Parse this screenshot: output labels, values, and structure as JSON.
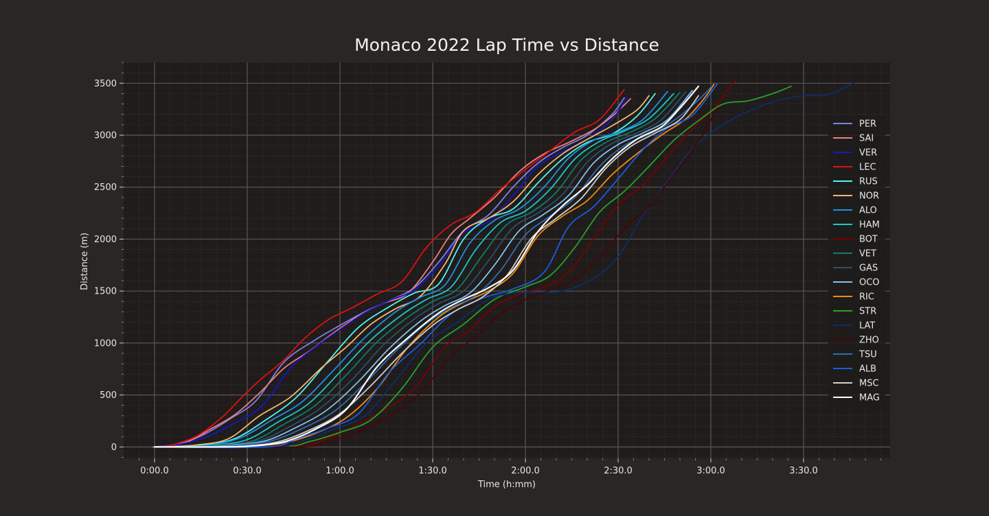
{
  "chart_data": {
    "type": "line",
    "title": "Monaco 2022 Lap Time vs Distance",
    "xlabel": "Time (h:mm)",
    "ylabel": "Distance (m)",
    "x_unit": "seconds",
    "xlim": [
      -10,
      238
    ],
    "ylim": [
      -110,
      3700
    ],
    "x_ticks": [
      0,
      30,
      60,
      90,
      120,
      150,
      180,
      210
    ],
    "x_tick_labels": [
      "0:00.0",
      "0:30.0",
      "1:00.0",
      "1:30.0",
      "2:00.0",
      "2:30.0",
      "3:00.0",
      "3:30.0"
    ],
    "y_ticks": [
      0,
      500,
      1000,
      1500,
      2000,
      2500,
      3000,
      3500
    ],
    "y_tick_labels": [
      "0",
      "500",
      "1000",
      "1500",
      "2000",
      "2500",
      "3000",
      "3500"
    ],
    "grid": true,
    "legend_position": "right",
    "background": "#1f1c1b",
    "series": [
      {
        "name": "PER",
        "color": "#7f7fe8",
        "x": [
          0,
          8,
          16,
          25,
          33,
          42,
          52,
          60,
          68,
          76,
          84,
          92,
          100,
          108,
          116,
          124,
          132,
          140,
          148,
          152
        ],
        "y": [
          0,
          30,
          120,
          280,
          450,
          820,
          1030,
          1170,
          1300,
          1410,
          1530,
          1780,
          2080,
          2230,
          2500,
          2730,
          2880,
          3000,
          3200,
          3360
        ]
      },
      {
        "name": "SAI",
        "color": "#f08080",
        "x": [
          2,
          10,
          18,
          26,
          34,
          42,
          50,
          58,
          66,
          74,
          82,
          90,
          96,
          102,
          110,
          118,
          126,
          134,
          142,
          148,
          154
        ],
        "y": [
          0,
          40,
          170,
          310,
          520,
          760,
          920,
          1100,
          1260,
          1380,
          1480,
          1780,
          2050,
          2200,
          2400,
          2650,
          2820,
          2930,
          3050,
          3180,
          3350
        ]
      },
      {
        "name": "VER",
        "color": "#1a14c9",
        "x": [
          1,
          9,
          17,
          26,
          35,
          44,
          52,
          60,
          68,
          76,
          84,
          92,
          100,
          108,
          116,
          124,
          132,
          140,
          148,
          153
        ],
        "y": [
          0,
          30,
          100,
          230,
          400,
          760,
          960,
          1130,
          1290,
          1410,
          1510,
          1740,
          2060,
          2170,
          2420,
          2700,
          2840,
          2960,
          3150,
          3370
        ]
      },
      {
        "name": "LEC",
        "color": "#e01010",
        "x": [
          3,
          8,
          14,
          22,
          28,
          34,
          42,
          48,
          56,
          64,
          72,
          80,
          88,
          96,
          104,
          112,
          120,
          128,
          136,
          144,
          152
        ],
        "y": [
          0,
          40,
          110,
          290,
          470,
          640,
          840,
          1030,
          1220,
          1340,
          1470,
          1590,
          1920,
          2140,
          2260,
          2480,
          2670,
          2850,
          3030,
          3150,
          3440
        ]
      },
      {
        "name": "RUS",
        "color": "#4ff6f0",
        "x": [
          6,
          16,
          26,
          36,
          46,
          56,
          66,
          76,
          84,
          92,
          100,
          108,
          116,
          124,
          132,
          140,
          148,
          156,
          162
        ],
        "y": [
          0,
          20,
          80,
          260,
          480,
          820,
          1150,
          1350,
          1480,
          1570,
          2000,
          2200,
          2290,
          2540,
          2770,
          2930,
          3010,
          3180,
          3400
        ]
      },
      {
        "name": "NOR",
        "color": "#f5b870",
        "x": [
          4,
          14,
          24,
          34,
          44,
          54,
          62,
          70,
          78,
          86,
          94,
          100,
          108,
          116,
          124,
          132,
          140,
          148,
          156,
          160
        ],
        "y": [
          0,
          20,
          80,
          300,
          480,
          760,
          960,
          1180,
          1330,
          1450,
          1760,
          2080,
          2200,
          2360,
          2620,
          2820,
          2960,
          3090,
          3240,
          3380
        ]
      },
      {
        "name": "ALO",
        "color": "#2190e6",
        "x": [
          8,
          18,
          28,
          38,
          48,
          58,
          68,
          78,
          86,
          94,
          102,
          110,
          118,
          126,
          134,
          142,
          150,
          158,
          166
        ],
        "y": [
          0,
          20,
          90,
          260,
          440,
          740,
          1050,
          1300,
          1440,
          1560,
          1960,
          2180,
          2290,
          2500,
          2780,
          2950,
          3030,
          3150,
          3420
        ]
      },
      {
        "name": "HAM",
        "color": "#19c9c9",
        "x": [
          10,
          20,
          30,
          40,
          50,
          60,
          70,
          80,
          88,
          96,
          104,
          112,
          120,
          128,
          136,
          144,
          152,
          160,
          168
        ],
        "y": [
          0,
          20,
          70,
          240,
          420,
          720,
          1030,
          1270,
          1420,
          1540,
          1900,
          2160,
          2270,
          2480,
          2770,
          2940,
          3040,
          3160,
          3400
        ]
      },
      {
        "name": "BOT",
        "color": "#7a0000",
        "x": [
          44,
          54,
          64,
          74,
          84,
          94,
          102,
          110,
          118,
          126,
          134,
          142,
          150,
          158,
          166,
          174,
          182,
          188
        ],
        "y": [
          0,
          60,
          190,
          350,
          560,
          960,
          1120,
          1350,
          1470,
          1540,
          1680,
          2000,
          2330,
          2520,
          2800,
          3060,
          3290,
          3540
        ]
      },
      {
        "name": "VET",
        "color": "#127a6e",
        "x": [
          12,
          22,
          32,
          42,
          52,
          62,
          72,
          82,
          90,
          98,
          106,
          114,
          122,
          130,
          138,
          146,
          154,
          162,
          170
        ],
        "y": [
          0,
          20,
          60,
          220,
          400,
          690,
          1010,
          1250,
          1400,
          1520,
          1840,
          2140,
          2260,
          2450,
          2760,
          2930,
          3030,
          3160,
          3410
        ]
      },
      {
        "name": "GAS",
        "color": "#2d4f6a",
        "x": [
          14,
          24,
          34,
          44,
          54,
          64,
          74,
          84,
          92,
          100,
          108,
          116,
          124,
          132,
          140,
          148,
          156,
          164,
          172
        ],
        "y": [
          0,
          20,
          60,
          200,
          380,
          650,
          980,
          1230,
          1380,
          1500,
          1790,
          2110,
          2250,
          2430,
          2740,
          2920,
          3020,
          3150,
          3420
        ]
      },
      {
        "name": "OCO",
        "color": "#7fc2f5",
        "x": [
          16,
          26,
          36,
          46,
          56,
          66,
          76,
          86,
          94,
          102,
          110,
          118,
          126,
          134,
          142,
          150,
          158,
          166,
          174
        ],
        "y": [
          0,
          20,
          60,
          190,
          360,
          630,
          950,
          1210,
          1360,
          1480,
          1750,
          2080,
          2240,
          2420,
          2730,
          2910,
          3020,
          3150,
          3430
        ]
      },
      {
        "name": "RIC",
        "color": "#ef8b16",
        "x": [
          22,
          32,
          42,
          52,
          62,
          72,
          82,
          92,
          100,
          108,
          116,
          124,
          132,
          140,
          148,
          156,
          164,
          172,
          178,
          181
        ],
        "y": [
          0,
          10,
          40,
          130,
          280,
          560,
          960,
          1250,
          1390,
          1500,
          1670,
          2030,
          2220,
          2370,
          2620,
          2820,
          3000,
          3160,
          3360,
          3490
        ]
      },
      {
        "name": "STR",
        "color": "#2aa02a",
        "x": [
          40,
          50,
          60,
          70,
          80,
          90,
          100,
          110,
          120,
          128,
          136,
          144,
          152,
          160,
          168,
          176,
          184,
          192,
          200,
          206
        ],
        "y": [
          0,
          50,
          140,
          260,
          560,
          960,
          1180,
          1420,
          1540,
          1650,
          1920,
          2260,
          2460,
          2700,
          2950,
          3140,
          3300,
          3330,
          3400,
          3470
        ]
      },
      {
        "name": "LAT",
        "color": "#0d2d6e",
        "x": [
          38,
          48,
          58,
          68,
          78,
          88,
          98,
          108,
          116,
          122,
          132,
          142,
          150,
          158,
          166,
          174,
          182,
          190,
          200,
          210,
          218,
          226
        ],
        "y": [
          0,
          60,
          170,
          300,
          640,
          1000,
          1200,
          1420,
          1480,
          1490,
          1500,
          1620,
          1830,
          2230,
          2560,
          2870,
          3060,
          3200,
          3320,
          3380,
          3390,
          3500
        ]
      },
      {
        "name": "ZHO",
        "color": "#4a0505",
        "x": [
          46,
          56,
          66,
          76,
          86,
          96,
          104,
          112,
          120,
          128,
          136,
          144,
          152,
          160,
          168,
          176,
          182
        ],
        "y": [
          0,
          50,
          150,
          300,
          520,
          880,
          1060,
          1280,
          1420,
          1510,
          1620,
          1820,
          2100,
          2320,
          2620,
          2940,
          3260
        ]
      },
      {
        "name": "TSU",
        "color": "#2f6db3",
        "x": [
          18,
          28,
          38,
          48,
          58,
          68,
          78,
          88,
          96,
          104,
          112,
          120,
          128,
          136,
          144,
          152,
          160,
          168,
          176,
          180
        ],
        "y": [
          0,
          20,
          60,
          180,
          340,
          610,
          920,
          1190,
          1340,
          1460,
          1700,
          2040,
          2220,
          2400,
          2700,
          2900,
          3010,
          3140,
          3340,
          3460
        ]
      },
      {
        "name": "ALB",
        "color": "#1a5ce0",
        "x": [
          36,
          46,
          56,
          66,
          76,
          86,
          96,
          106,
          116,
          126,
          134,
          142,
          150,
          158,
          166,
          174,
          182
        ],
        "y": [
          0,
          80,
          180,
          320,
          720,
          990,
          1280,
          1430,
          1520,
          1680,
          2120,
          2310,
          2580,
          2860,
          3070,
          3190,
          3490
        ]
      },
      {
        "name": "MSC",
        "color": "#d0d0d0",
        "x": [
          20,
          30,
          40,
          50,
          60,
          70,
          80,
          90,
          98,
          106,
          114,
          122,
          130,
          138,
          146,
          154,
          162,
          170,
          176
        ],
        "y": [
          0,
          10,
          50,
          160,
          320,
          590,
          900,
          1170,
          1320,
          1440,
          1650,
          2010,
          2200,
          2390,
          2680,
          2890,
          3020,
          3150,
          3380
        ]
      },
      {
        "name": "MAG",
        "color": "#ffffff",
        "x": [
          22,
          32,
          42,
          52,
          62,
          72,
          82,
          92,
          100,
          108,
          116,
          124,
          132,
          140,
          148,
          156,
          164,
          170,
          176
        ],
        "y": [
          0,
          10,
          50,
          170,
          360,
          770,
          1050,
          1290,
          1420,
          1530,
          1700,
          2070,
          2320,
          2520,
          2770,
          2960,
          3080,
          3260,
          3470
        ]
      }
    ]
  }
}
